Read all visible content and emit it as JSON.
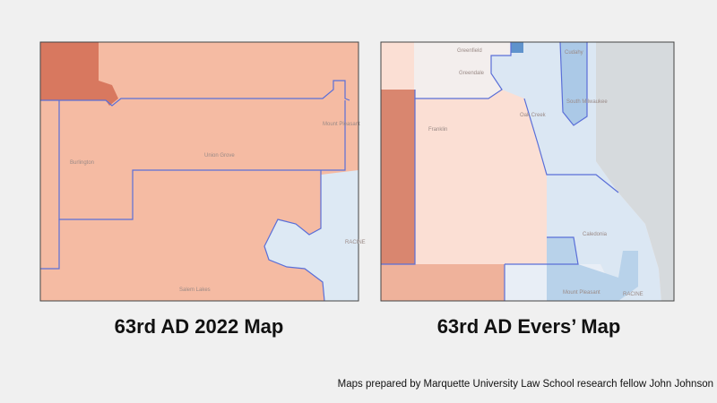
{
  "left_map": {
    "title": "63rd AD 2022 Map",
    "places": [
      "Burlington",
      "Union Grove",
      "Mount Pleasant",
      "Salem Lakes",
      "RACINE"
    ]
  },
  "right_map": {
    "title": "63rd AD Evers’ Map",
    "places": [
      "Greenfield",
      "Greendale",
      "Cudahy",
      "Franklin",
      "Oak Creek",
      "South Milwaukee",
      "Caledonia",
      "Mount Pleasant",
      "RACINE"
    ]
  },
  "credit": "Maps prepared by Marquette University Law School research fellow John Johnson"
}
